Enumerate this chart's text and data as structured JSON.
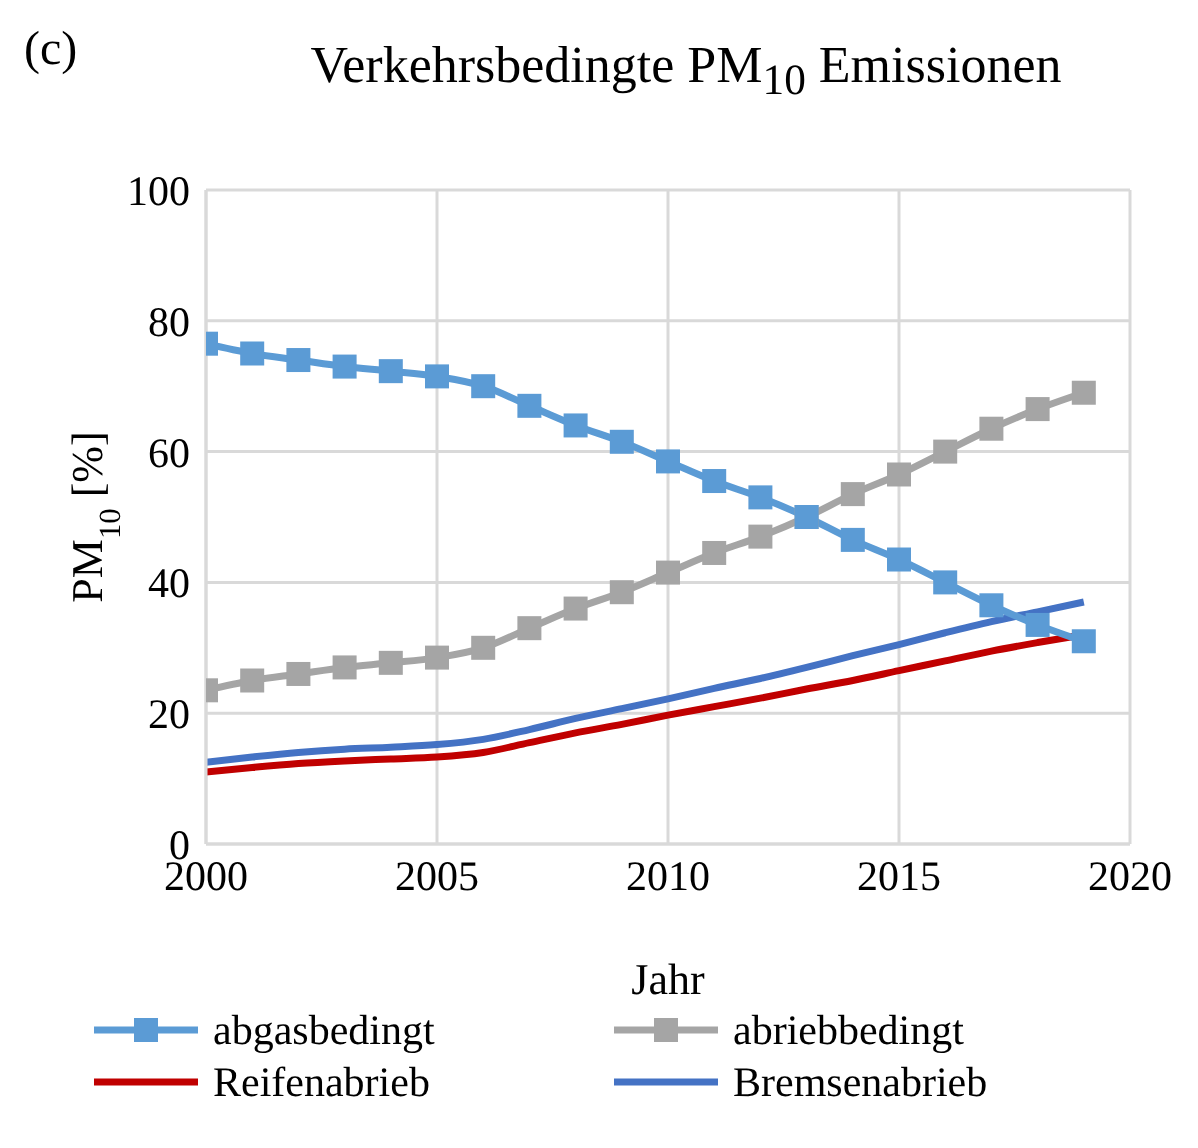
{
  "chart_data": {
    "type": "line",
    "title": "Verkehrsbedingte PM$_{10}$ Emissionen",
    "xlabel": "Jahr",
    "ylabel": "PM$_{10}$ [%]",
    "annotations": [
      "(c)"
    ],
    "x": [
      2000,
      2001,
      2002,
      2003,
      2004,
      2005,
      2006,
      2007,
      2008,
      2009,
      2010,
      2011,
      2012,
      2013,
      2014,
      2015,
      2016,
      2017,
      2018,
      2019
    ],
    "xlim": [
      2000,
      2020
    ],
    "xticks": [
      2000,
      2005,
      2010,
      2015,
      2020
    ],
    "ylim": [
      0,
      100
    ],
    "yticks": [
      0,
      20,
      40,
      60,
      80,
      100
    ],
    "grid": true,
    "legend": "bottom",
    "line_style": "solid",
    "series": [
      {
        "name": "abgasbedingt",
        "color": "#5b9bd5",
        "marker": "square",
        "values": [
          76.5,
          75,
          74,
          73,
          72.3,
          71.5,
          70,
          67,
          64,
          61.5,
          58.5,
          55.5,
          53,
          50,
          46.5,
          43.5,
          40,
          36.5,
          33.5,
          31
        ]
      },
      {
        "name": "abriebbedingt",
        "color": "#a5a5a5",
        "marker": "square",
        "values": [
          23.5,
          25,
          26,
          27,
          27.7,
          28.5,
          30,
          33,
          36,
          38.5,
          41.5,
          44.5,
          47,
          50,
          53.5,
          56.5,
          60,
          63.5,
          66.5,
          69
        ]
      },
      {
        "name": "Reifenabrieb",
        "color": "#c00000",
        "marker": "none",
        "values": [
          11,
          11.7,
          12.3,
          12.7,
          13,
          13.3,
          14,
          15.5,
          17,
          18.3,
          19.7,
          21,
          22.3,
          23.7,
          25,
          26.5,
          28,
          29.5,
          30.8,
          32
        ]
      },
      {
        "name": "Bremsenabrieb",
        "color": "#4472c4",
        "marker": "none",
        "values": [
          12.5,
          13.3,
          14,
          14.5,
          14.8,
          15.2,
          16,
          17.5,
          19.2,
          20.7,
          22.2,
          23.8,
          25.3,
          27,
          28.8,
          30.5,
          32.3,
          34,
          35.5,
          37
        ]
      }
    ]
  }
}
